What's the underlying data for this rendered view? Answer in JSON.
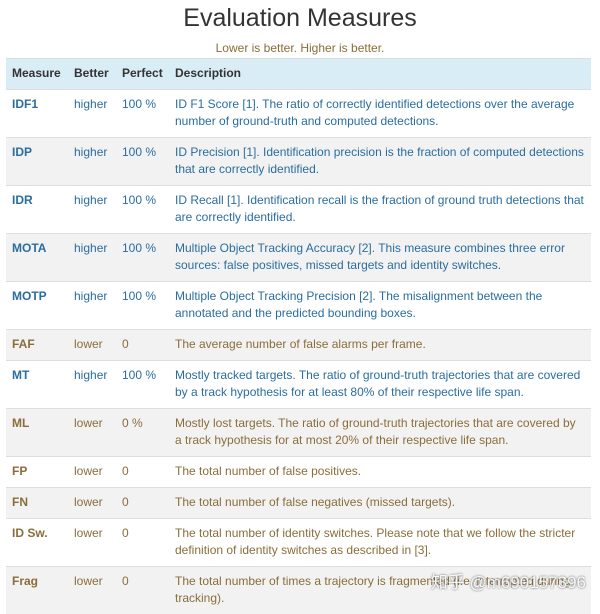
{
  "header": {
    "title": "Evaluation Measures",
    "subtitle": "Lower is better. Higher is better."
  },
  "table": {
    "columns": [
      "Measure",
      "Better",
      "Perfect",
      "Description"
    ],
    "higher_color": "#2a6da0",
    "lower_color": "#8a6d3b",
    "rows": [
      {
        "measure": "IDF1",
        "better": "higher",
        "perfect": "100 %",
        "description": "ID F1 Score [1]. The ratio of correctly identified detections over the average number of ground-truth and computed detections.",
        "color": "#2a6da0"
      },
      {
        "measure": "IDP",
        "better": "higher",
        "perfect": "100 %",
        "description": "ID Precision [1]. Identification precision is the fraction of computed detections that are correctly identified.",
        "color": "#2a6da0"
      },
      {
        "measure": "IDR",
        "better": "higher",
        "perfect": "100 %",
        "description": "ID Recall [1]. Identification recall is the fraction of ground truth detections that are correctly identified.",
        "color": "#2a6da0"
      },
      {
        "measure": "MOTA",
        "better": "higher",
        "perfect": "100 %",
        "description": "Multiple Object Tracking Accuracy [2]. This measure combines three error sources: false positives, missed targets and identity switches.",
        "color": "#2a6da0"
      },
      {
        "measure": "MOTP",
        "better": "higher",
        "perfect": "100 %",
        "description": "Multiple Object Tracking Precision [2]. The misalignment between the annotated and the predicted bounding boxes.",
        "color": "#2a6da0"
      },
      {
        "measure": "FAF",
        "better": "lower",
        "perfect": "0",
        "description": "The average number of false alarms per frame.",
        "color": "#8a6d3b"
      },
      {
        "measure": "MT",
        "better": "higher",
        "perfect": "100 %",
        "description": "Mostly tracked targets. The ratio of ground-truth trajectories that are covered by a track hypothesis for at least 80% of their respective life span.",
        "color": "#2a6da0"
      },
      {
        "measure": "ML",
        "better": "lower",
        "perfect": "0 %",
        "description": "Mostly lost targets. The ratio of ground-truth trajectories that are covered by a track hypothesis for at most 20% of their respective life span.",
        "color": "#8a6d3b"
      },
      {
        "measure": "FP",
        "better": "lower",
        "perfect": "0",
        "description": "The total number of false positives.",
        "color": "#8a6d3b"
      },
      {
        "measure": "FN",
        "better": "lower",
        "perfect": "0",
        "description": "The total number of false negatives (missed targets).",
        "color": "#8a6d3b"
      },
      {
        "measure": "ID Sw.",
        "better": "lower",
        "perfect": "0",
        "description": "The total number of identity switches. Please note that we follow the stricter definition of identity switches as described in [3].",
        "color": "#8a6d3b"
      },
      {
        "measure": "Frag",
        "better": "lower",
        "perfect": "0",
        "description": "The total number of times a trajectory is fragmented (i.e. interrupted during tracking).",
        "color": "#8a6d3b"
      }
    ]
  },
  "watermark": "知乎 @m690157396"
}
